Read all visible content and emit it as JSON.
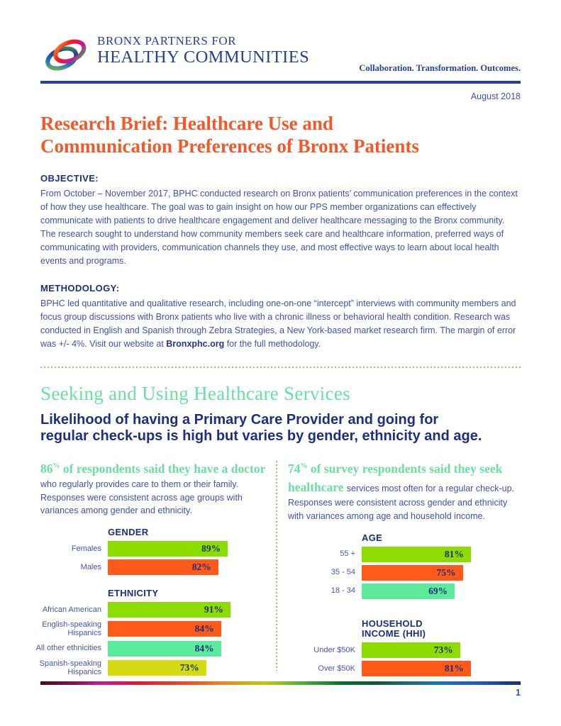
{
  "header": {
    "logo_line1": "BRONX PARTNERS FOR",
    "logo_line2": "HEALTHY COMMUNITIES",
    "tagline": "Collaboration. Transformation. Outcomes.",
    "date": "August 2018"
  },
  "title": {
    "line1": "Research Brief: Healthcare Use and",
    "line2": "Communication Preferences of Bronx Patients"
  },
  "objective": {
    "heading": "OBJECTIVE:",
    "body": "From October – November 2017, BPHC conducted research on Bronx patients’ communication preferences in the context of how they use healthcare. The goal was to gain insight on how our PPS member organizations can effectively communicate with patients to drive healthcare engagement and deliver healthcare messaging to the Bronx community. The research sought to understand how community members seek care and healthcare information, preferred ways of communicating with providers, communication channels they use, and most effective ways to learn about local health events and programs."
  },
  "methodology": {
    "heading": "METHODOLOGY:",
    "body_before_link": "BPHC led quantitative and qualitative research, including one-on-one “intercept” interviews with community members and focus group discussions with Bronx patients who live with a chronic illness or behavioral health condition. Research was conducted in English and Spanish through Zebra Strategies, a New York-based market research firm. The margin of error was +/- 4%. Visit our website at ",
    "link": "Bronxphc.org",
    "body_after_link": " for the full methodology."
  },
  "section": {
    "heading": "Seeking and Using Healthcare Services",
    "subheading_line1": "Likelihood of having a Primary Care Provider and going for",
    "subheading_line2": "regular check-ups is high but varies by gender, ethnicity and age."
  },
  "left_lead": {
    "stat_number": "86",
    "stat_sup": "%",
    "green_text": " of respondents said they have a doctor ",
    "blue_text": "who regularly provides care to them or their family. Responses were consistent across age groups with variances among gender and ethnicity."
  },
  "right_lead": {
    "stat_number": "74",
    "stat_sup": "%",
    "green_text": " of survey respondents said they seek healthcare ",
    "blue_text": "services most often for a regular check-up. Responses were consistent across gender and ethnicity with variances among age and household income."
  },
  "charts": {
    "gender": {
      "title": "GENDER",
      "rows": [
        {
          "label": "Females",
          "value": 89,
          "display": "89%",
          "color": "green"
        },
        {
          "label": "Males",
          "value": 82,
          "display": "82%",
          "color": "orange"
        }
      ]
    },
    "ethnicity": {
      "title": "ETHNICITY",
      "rows": [
        {
          "label": "African American",
          "value": 91,
          "display": "91%",
          "color": "green"
        },
        {
          "label": "English-speaking Hispanics",
          "value": 84,
          "display": "84%",
          "color": "orange"
        },
        {
          "label": "All other ethnicities",
          "value": 84,
          "display": "84%",
          "color": "mint"
        },
        {
          "label": "Spanish-speaking Hispanics",
          "value": 73,
          "display": "73%",
          "color": "yellow"
        }
      ]
    },
    "age": {
      "title": "AGE",
      "rows": [
        {
          "label": "55 +",
          "value": 81,
          "display": "81%",
          "color": "green"
        },
        {
          "label": "35 - 54",
          "value": 75,
          "display": "75%",
          "color": "orange"
        },
        {
          "label": "18 - 34",
          "value": 69,
          "display": "69%",
          "color": "mint"
        }
      ]
    },
    "hhi": {
      "title": "HOUSEHOLD INCOME (HHI)",
      "rows": [
        {
          "label": "Under $50K",
          "value": 73,
          "display": "73%",
          "color": "green"
        },
        {
          "label": "Over $50K",
          "value": 81,
          "display": "81%",
          "color": "orange"
        }
      ]
    }
  },
  "chart_data": [
    {
      "type": "bar",
      "title": "GENDER",
      "categories": [
        "Females",
        "Males"
      ],
      "values": [
        89,
        82
      ],
      "xlim": [
        0,
        100
      ],
      "unit": "%"
    },
    {
      "type": "bar",
      "title": "ETHNICITY",
      "categories": [
        "African American",
        "English-speaking Hispanics",
        "All other ethnicities",
        "Spanish-speaking Hispanics"
      ],
      "values": [
        91,
        84,
        84,
        73
      ],
      "xlim": [
        0,
        100
      ],
      "unit": "%"
    },
    {
      "type": "bar",
      "title": "AGE",
      "categories": [
        "55 +",
        "35 - 54",
        "18 - 34"
      ],
      "values": [
        81,
        75,
        69
      ],
      "xlim": [
        0,
        100
      ],
      "unit": "%"
    },
    {
      "type": "bar",
      "title": "HOUSEHOLD INCOME (HHI)",
      "categories": [
        "Under $50K",
        "Over $50K"
      ],
      "values": [
        73,
        81
      ],
      "xlim": [
        0,
        100
      ],
      "unit": "%"
    }
  ],
  "colors": {
    "green": "#8ddc00",
    "orange": "#ff5a1a",
    "mint": "#5beb9b",
    "yellow": "#d6da10",
    "accent_orange": "#f2592a",
    "accent_mint": "#69e09f",
    "navy": "#1e2f80",
    "body_blue": "#4150ae"
  },
  "footer": {
    "page_number": "1"
  }
}
